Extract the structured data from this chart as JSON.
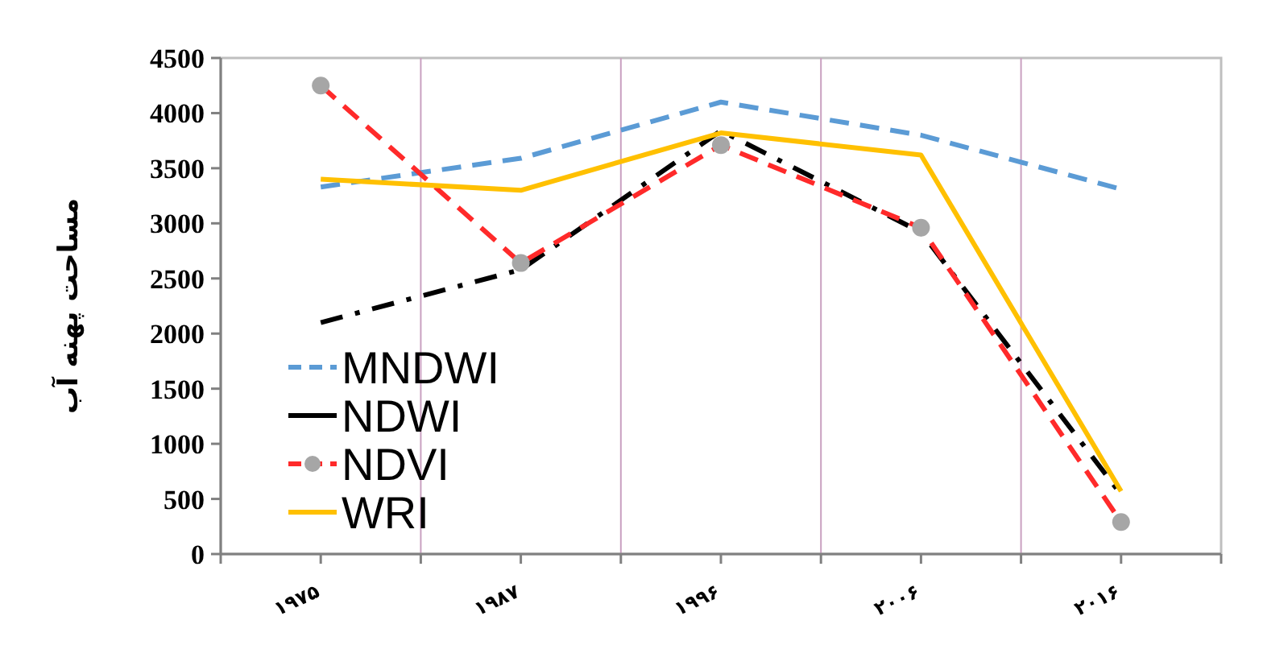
{
  "chart_data": {
    "type": "line",
    "ylabel": "مساحت پهنه آب",
    "categories": [
      "۱۹۷۵",
      "۱۹۸۷",
      "۱۹۹۶",
      "۲۰۰۶",
      "۲۰۱۶"
    ],
    "series": [
      {
        "name": "MNDWI",
        "color": "#5b9bd5",
        "line_style": "dashed",
        "values": [
          3330,
          3590,
          4100,
          3800,
          3310
        ]
      },
      {
        "name": "NDWI",
        "color": "#000000",
        "line_style": "dashdot",
        "values": [
          2100,
          2580,
          3840,
          2920,
          540
        ]
      },
      {
        "name": "NDVI",
        "color": "#ff2a2a",
        "line_style": "dashed",
        "marker": "circle",
        "values": [
          4250,
          2640,
          3710,
          2960,
          290
        ]
      },
      {
        "name": "WRI",
        "color": "#ffc000",
        "line_style": "solid",
        "values": [
          3400,
          3300,
          3820,
          3620,
          570
        ]
      }
    ],
    "ylim": [
      0,
      4500
    ],
    "yticks": [
      0,
      500,
      1000,
      1500,
      2000,
      2500,
      3000,
      3500,
      4000,
      4500
    ],
    "grid": "x",
    "legend": "bottom left"
  }
}
